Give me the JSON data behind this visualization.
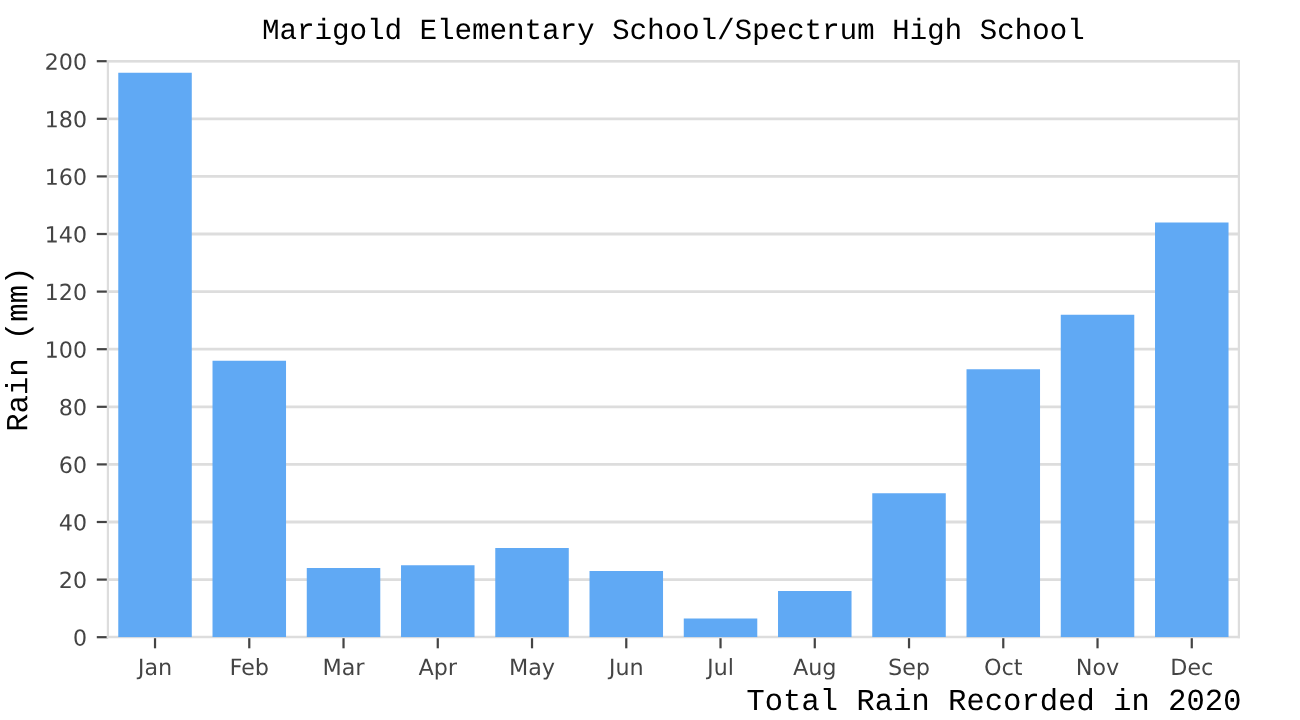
{
  "chart_data": {
    "type": "bar",
    "title": "Marigold Elementary School/Spectrum High School",
    "xlabel": "Total Rain Recorded in 2020",
    "ylabel": "Rain (mm)",
    "categories": [
      "Jan",
      "Feb",
      "Mar",
      "Apr",
      "May",
      "Jun",
      "Jul",
      "Aug",
      "Sep",
      "Oct",
      "Nov",
      "Dec"
    ],
    "values": [
      196,
      96,
      24,
      25,
      31,
      23,
      6.5,
      16,
      50,
      93,
      112,
      144
    ],
    "color": "#60a9f4",
    "ylim": [
      0,
      200
    ],
    "yticks": [
      0,
      20,
      40,
      60,
      80,
      100,
      120,
      140,
      160,
      180,
      200
    ],
    "grid": "y"
  }
}
